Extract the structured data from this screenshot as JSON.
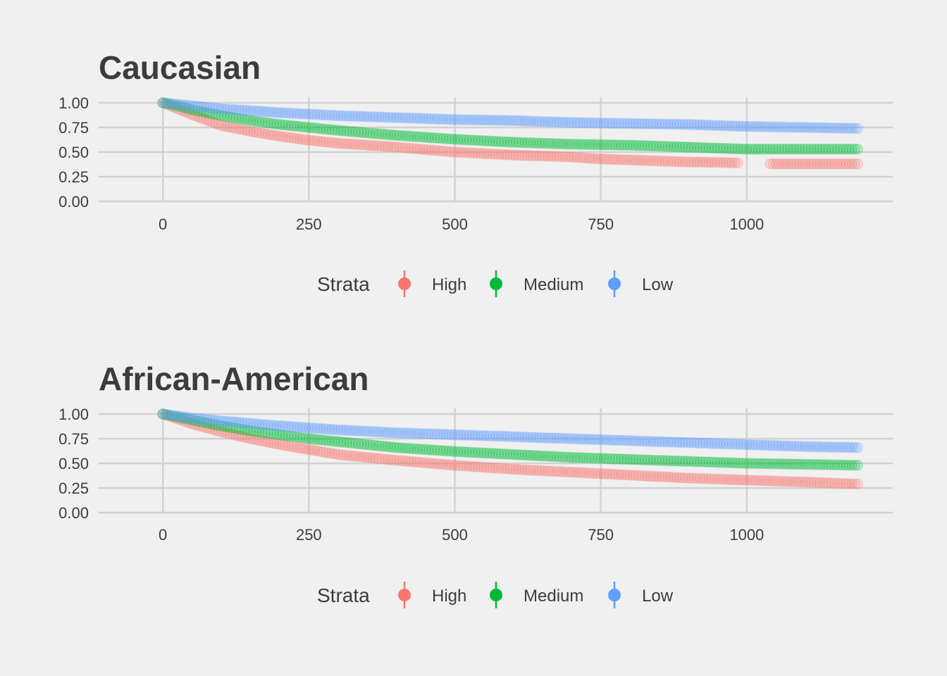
{
  "chart_data": [
    {
      "type": "scatter",
      "title": "Caucasian",
      "xlabel": "",
      "ylabel": "",
      "xlim": [
        -110,
        1250
      ],
      "ylim": [
        0,
        1
      ],
      "xticks": [
        0,
        250,
        500,
        750,
        1000
      ],
      "xtick_labels": [
        "0",
        "250",
        "500",
        "750",
        "1000"
      ],
      "yticks": [
        0,
        0.25,
        0.5,
        0.75,
        1
      ],
      "ytick_labels": [
        "0.00",
        "0.25",
        "0.50",
        "0.75",
        "1.00"
      ],
      "grid": true,
      "legend": {
        "title": "Strata",
        "position": "bottom",
        "entries": [
          {
            "label": "High",
            "color": "#F8766D"
          },
          {
            "label": "Medium",
            "color": "#00BA38"
          },
          {
            "label": "Low",
            "color": "#619CFF"
          }
        ]
      },
      "series": [
        {
          "name": "High",
          "color": "#F8766D",
          "x": [
            0,
            25,
            50,
            100,
            150,
            200,
            250,
            300,
            400,
            500,
            600,
            700,
            750,
            800,
            900,
            1000,
            1050,
            1100,
            1190
          ],
          "y": [
            1.0,
            0.94,
            0.88,
            0.77,
            0.71,
            0.66,
            0.62,
            0.59,
            0.55,
            0.5,
            0.47,
            0.45,
            0.43,
            0.42,
            0.4,
            0.39,
            0.38,
            0.38,
            0.38
          ],
          "gaps": [
            [
              985,
              1040
            ]
          ]
        },
        {
          "name": "Medium",
          "color": "#00BA38",
          "x": [
            0,
            25,
            50,
            100,
            150,
            200,
            250,
            300,
            400,
            500,
            600,
            700,
            800,
            900,
            1000,
            1100,
            1190
          ],
          "y": [
            1.0,
            0.97,
            0.93,
            0.87,
            0.82,
            0.78,
            0.75,
            0.72,
            0.67,
            0.63,
            0.6,
            0.58,
            0.57,
            0.55,
            0.53,
            0.53,
            0.53
          ],
          "gaps": []
        },
        {
          "name": "Low",
          "color": "#619CFF",
          "x": [
            0,
            50,
            100,
            200,
            300,
            400,
            500,
            600,
            700,
            800,
            900,
            1000,
            1100,
            1190
          ],
          "y": [
            1.0,
            0.97,
            0.94,
            0.9,
            0.87,
            0.85,
            0.83,
            0.82,
            0.8,
            0.79,
            0.78,
            0.76,
            0.75,
            0.74
          ],
          "gaps": []
        }
      ]
    },
    {
      "type": "scatter",
      "title": "African-American",
      "xlabel": "",
      "ylabel": "",
      "xlim": [
        -110,
        1250
      ],
      "ylim": [
        0,
        1
      ],
      "xticks": [
        0,
        250,
        500,
        750,
        1000
      ],
      "xtick_labels": [
        "0",
        "250",
        "500",
        "750",
        "1000"
      ],
      "yticks": [
        0,
        0.25,
        0.5,
        0.75,
        1
      ],
      "ytick_labels": [
        "0.00",
        "0.25",
        "0.50",
        "0.75",
        "1.00"
      ],
      "grid": true,
      "legend": {
        "title": "Strata",
        "position": "bottom",
        "entries": [
          {
            "label": "High",
            "color": "#F8766D"
          },
          {
            "label": "Medium",
            "color": "#00BA38"
          },
          {
            "label": "Low",
            "color": "#619CFF"
          }
        ]
      },
      "series": [
        {
          "name": "High",
          "color": "#F8766D",
          "x": [
            0,
            50,
            100,
            150,
            200,
            250,
            300,
            400,
            500,
            600,
            700,
            800,
            900,
            1000,
            1100,
            1190
          ],
          "y": [
            1.0,
            0.9,
            0.82,
            0.75,
            0.69,
            0.64,
            0.59,
            0.53,
            0.48,
            0.44,
            0.41,
            0.38,
            0.35,
            0.33,
            0.31,
            0.29
          ],
          "gaps": []
        },
        {
          "name": "Medium",
          "color": "#00BA38",
          "x": [
            0,
            50,
            100,
            150,
            200,
            250,
            300,
            400,
            500,
            600,
            700,
            800,
            900,
            1000,
            1100,
            1190
          ],
          "y": [
            1.0,
            0.94,
            0.88,
            0.83,
            0.79,
            0.75,
            0.72,
            0.66,
            0.62,
            0.59,
            0.56,
            0.54,
            0.52,
            0.5,
            0.49,
            0.48
          ],
          "gaps": []
        },
        {
          "name": "Low",
          "color": "#619CFF",
          "x": [
            0,
            50,
            100,
            200,
            300,
            400,
            500,
            600,
            700,
            800,
            900,
            1000,
            1100,
            1190
          ],
          "y": [
            1.0,
            0.96,
            0.93,
            0.88,
            0.84,
            0.81,
            0.79,
            0.77,
            0.75,
            0.73,
            0.71,
            0.69,
            0.67,
            0.66
          ],
          "gaps": []
        }
      ]
    }
  ]
}
